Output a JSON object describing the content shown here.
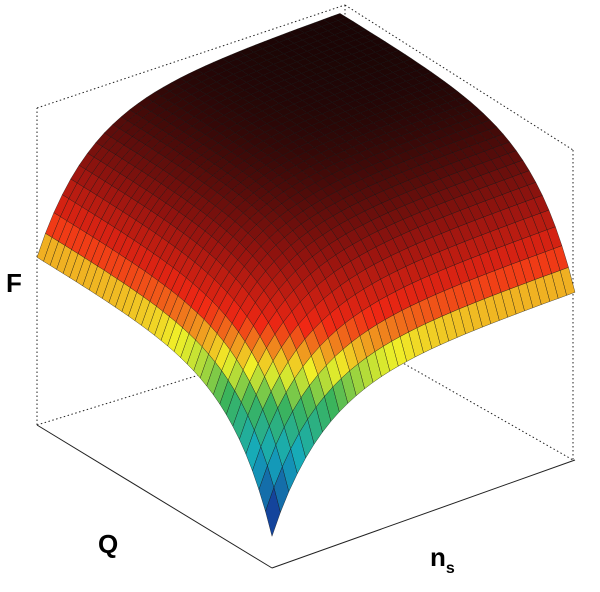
{
  "chart_data": {
    "type": "surface",
    "x_label": "Q",
    "y_label": {
      "main": "n",
      "sub": "s"
    },
    "z_label": "F"
  }
}
